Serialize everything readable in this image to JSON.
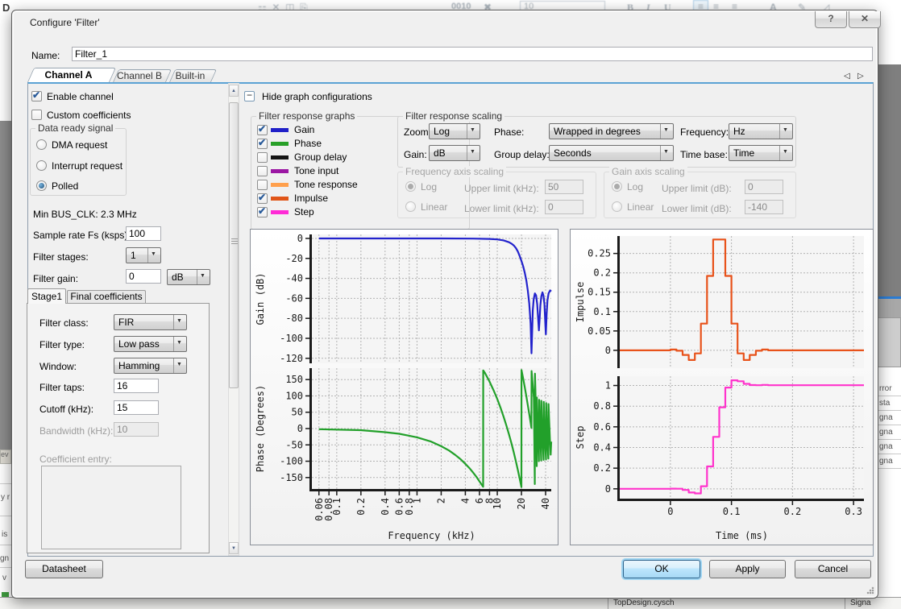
{
  "background": {
    "top_left_fragment": "D",
    "toolbar_bits": "0010",
    "toolbar_font_size": "10",
    "toolbar_b": "B",
    "toolbar_i": "I",
    "toolbar_u": "U",
    "toolbar_a": "A",
    "left_rows": [
      "ev",
      "y r",
      "is",
      "gn",
      "v"
    ],
    "right_rows": [
      "rror",
      "sta",
      "gna",
      "gna",
      "gna",
      "gna"
    ],
    "status_file": "TopDesign.cysch",
    "status_signal": "Signa"
  },
  "dialog": {
    "title": "Configure 'Filter'",
    "name_label": "Name:",
    "name_value": "Filter_1",
    "tabs": {
      "a": "Channel A",
      "b": "Channel B",
      "builtin": "Built-in"
    }
  },
  "channel": {
    "enable_label": "Enable channel",
    "enable_checked": true,
    "custom_label": "Custom coefficients",
    "custom_checked": false,
    "data_ready": {
      "title": "Data ready signal",
      "options": [
        {
          "label": "DMA request",
          "selected": false
        },
        {
          "label": "Interrupt request",
          "selected": false
        },
        {
          "label": "Polled",
          "selected": true
        }
      ]
    },
    "min_bus_clk": "Min BUS_CLK: 2.3 MHz",
    "sample_rate_label": "Sample rate Fs (ksps):",
    "sample_rate_value": "100",
    "filter_stages_label": "Filter stages:",
    "filter_stages_value": "1",
    "filter_gain_label": "Filter gain:",
    "filter_gain_value": "0",
    "filter_gain_unit": "dB"
  },
  "stage": {
    "tab_stage1": "Stage1",
    "tab_final": "Final coefficients",
    "filter_class_label": "Filter class:",
    "filter_class_value": "FIR",
    "filter_type_label": "Filter type:",
    "filter_type_value": "Low pass",
    "window_label": "Window:",
    "window_value": "Hamming",
    "filter_taps_label": "Filter taps:",
    "filter_taps_value": "16",
    "cutoff_label": "Cutoff (kHz):",
    "cutoff_value": "15",
    "bandwidth_label": "Bandwidth (kHz):",
    "bandwidth_value": "10",
    "coefficient_entry_label": "Coefficient entry:"
  },
  "graphs": {
    "hide_label": "Hide graph configurations",
    "legend_title": "Filter response graphs",
    "legend": [
      {
        "label": "Gain",
        "color": "#2020c8",
        "checked": true
      },
      {
        "label": "Phase",
        "color": "#28a028",
        "checked": true
      },
      {
        "label": "Group delay",
        "color": "#151515",
        "checked": false
      },
      {
        "label": "Tone input",
        "color": "#9b17a3",
        "checked": false
      },
      {
        "label": "Tone response",
        "color": "#ffa04d",
        "checked": false
      },
      {
        "label": "Impulse",
        "color": "#e05518",
        "checked": true
      },
      {
        "label": "Step",
        "color": "#ff2bd6",
        "checked": true
      }
    ],
    "scaling": {
      "title": "Filter response scaling",
      "zoom_label": "Zoom:",
      "zoom_value": "Log",
      "phase_label": "Phase:",
      "phase_value": "Wrapped in degrees",
      "frequency_label": "Frequency:",
      "frequency_value": "Hz",
      "gain_label": "Gain:",
      "gain_value": "dB",
      "group_delay_label": "Group delay:",
      "group_delay_value": "Seconds",
      "time_base_label": "Time base:",
      "time_base_value": "Time"
    },
    "freq_axis": {
      "title": "Frequency axis scaling",
      "log_label": "Log",
      "log_selected": true,
      "linear_label": "Linear",
      "linear_selected": false,
      "upper_label": "Upper limit (kHz):",
      "upper_value": "50",
      "lower_label": "Lower limit (kHz):",
      "lower_value": "0"
    },
    "gain_axis": {
      "title": "Gain axis scaling",
      "log_label": "Log",
      "log_selected": true,
      "linear_label": "Linear",
      "linear_selected": false,
      "upper_label": "Upper limit (dB):",
      "upper_value": "0",
      "lower_label": "Lower limit (dB):",
      "lower_value": "-140"
    }
  },
  "buttons": {
    "datasheet": "Datasheet",
    "ok": "OK",
    "apply": "Apply",
    "cancel": "Cancel"
  },
  "chart_data": [
    {
      "type": "line",
      "xlabel": "Frequency (kHz)",
      "x_scale": "log",
      "x_range": [
        0.049,
        47
      ],
      "x_ticks": [
        0.06,
        0.08,
        0.1,
        0.2,
        0.4,
        0.6,
        0.8,
        1,
        2,
        4,
        6,
        8,
        10,
        20,
        40
      ],
      "subplots": [
        {
          "ylabel": "Gain (dB)",
          "y_ticks": [
            0,
            -20,
            -40,
            -60,
            -80,
            -100,
            -120
          ],
          "y_range": [
            4,
            -125
          ],
          "series": [
            {
              "name": "Gain",
              "color": "#2222cc",
              "points": [
                [
                  0.06,
                  0
                ],
                [
                  2,
                  0
                ],
                [
                  5,
                  -0.2
                ],
                [
                  8,
                  -0.5
                ],
                [
                  10,
                  -1
                ],
                [
                  12,
                  -2
                ],
                [
                  14,
                  -3.8
                ],
                [
                  15,
                  -5.2
                ],
                [
                  16,
                  -7
                ],
                [
                  17,
                  -9.5
                ],
                [
                  18,
                  -13
                ],
                [
                  19,
                  -17.5
                ],
                [
                  20,
                  -22.5
                ],
                [
                  21,
                  -28
                ],
                [
                  22,
                  -34.5
                ],
                [
                  23,
                  -42
                ],
                [
                  24,
                  -52
                ],
                [
                  25,
                  -65
                ],
                [
                  26,
                  -85
                ],
                [
                  26.7,
                  -115
                ],
                [
                  27.1,
                  -97
                ],
                [
                  27.7,
                  -72
                ],
                [
                  28.4,
                  -61
                ],
                [
                  29.4,
                  -55
                ],
                [
                  30.4,
                  -57
                ],
                [
                  31.4,
                  -66
                ],
                [
                  32.3,
                  -81
                ],
                [
                  33,
                  -92
                ],
                [
                  33.6,
                  -82
                ],
                [
                  34.4,
                  -67
                ],
                [
                  35.4,
                  -58
                ],
                [
                  36.5,
                  -54
                ],
                [
                  37.6,
                  -57
                ],
                [
                  38.7,
                  -66
                ],
                [
                  39.8,
                  -88
                ],
                [
                  40.3,
                  -96
                ],
                [
                  41.2,
                  -76
                ],
                [
                  42.2,
                  -62
                ],
                [
                  43.5,
                  -55
                ],
                [
                  45.5,
                  -52
                ],
                [
                  47,
                  -53
                ]
              ]
            }
          ]
        },
        {
          "ylabel": "Phase (Degrees)",
          "y_ticks": [
            150,
            100,
            50,
            0,
            -50,
            -100,
            -150
          ],
          "y_range": [
            185,
            -185
          ],
          "series": [
            {
              "name": "Phase",
              "color": "#22a02a",
              "points": [
                [
                  0.06,
                  -2
                ],
                [
                  0.2,
                  -5
                ],
                [
                  0.4,
                  -11
                ],
                [
                  0.6,
                  -16
                ],
                [
                  0.8,
                  -22
                ],
                [
                  1,
                  -27
                ],
                [
                  1.5,
                  -40
                ],
                [
                  2,
                  -54
                ],
                [
                  2.5,
                  -67
                ],
                [
                  3,
                  -81
                ],
                [
                  3.5,
                  -94
                ],
                [
                  4,
                  -108
                ],
                [
                  4.5,
                  -121
                ],
                [
                  5,
                  -135
                ],
                [
                  5.5,
                  -148
                ],
                [
                  6,
                  -162
                ],
                [
                  6.66,
                  -178
                ],
                [
                  6.68,
                  178
                ],
                [
                  7,
                  171
                ],
                [
                  8,
                  144
                ],
                [
                  9,
                  117
                ],
                [
                  10,
                  90
                ],
                [
                  11,
                  63
                ],
                [
                  12,
                  36
                ],
                [
                  13,
                  9
                ],
                [
                  14,
                  -18
                ],
                [
                  15,
                  -45
                ],
                [
                  16,
                  -72
                ],
                [
                  17,
                  -99
                ],
                [
                  18,
                  -126
                ],
                [
                  19,
                  -153
                ],
                [
                  19.98,
                  -179
                ],
                [
                  20.02,
                  179
                ],
                [
                  21,
                  153
                ],
                [
                  22,
                  126
                ],
                [
                  23,
                  99
                ],
                [
                  24,
                  72
                ],
                [
                  25,
                  45
                ],
                [
                  26,
                  18
                ],
                [
                  26.6,
                  2
                ],
                [
                  26.75,
                  176
                ],
                [
                  27.5,
                  140
                ],
                [
                  28.5,
                  95
                ],
                [
                  29.3,
                  -170
                ],
                [
                  29.45,
                  168
                ],
                [
                  30.3,
                  60
                ],
                [
                  31,
                  -115
                ],
                [
                  31.15,
                  95
                ],
                [
                  32.2,
                  -30
                ],
                [
                  33,
                  -100
                ],
                [
                  33.2,
                  88
                ],
                [
                  34.3,
                  -20
                ],
                [
                  35.2,
                  -98
                ],
                [
                  35.4,
                  85
                ],
                [
                  36.6,
                  -30
                ],
                [
                  37.7,
                  -96
                ],
                [
                  37.9,
                  82
                ],
                [
                  39.3,
                  -40
                ],
                [
                  40.4,
                  -95
                ],
                [
                  40.6,
                  78
                ],
                [
                  42.3,
                  -50
                ],
                [
                  43.2,
                  -92
                ],
                [
                  43.4,
                  75
                ],
                [
                  45.3,
                  -35
                ],
                [
                  46.2,
                  -80
                ],
                [
                  47,
                  -40
                ]
              ]
            }
          ]
        }
      ]
    },
    {
      "type": "line",
      "xlabel": "Time (ms)",
      "x_scale": "linear",
      "x_range": [
        -0.083,
        0.317
      ],
      "x_ticks": [
        0,
        0.1,
        0.2,
        0.3
      ],
      "subplots": [
        {
          "ylabel": "Impulse",
          "y_ticks": [
            0.25,
            0.2,
            0.15,
            0.1,
            0.05,
            0
          ],
          "y_range": [
            0.295,
            -0.046
          ],
          "series": [
            {
              "name": "Impulse",
              "color": "#e8521a",
              "stairs": {
                "t0": 0,
                "dt": 0.01,
                "pre": 0,
                "post": 0,
                "values": [
                  0.002,
                  -0.001,
                  -0.012,
                  -0.025,
                  -0.008,
                  0.069,
                  0.192,
                  0.286,
                  0.286,
                  0.192,
                  0.069,
                  -0.008,
                  -0.025,
                  -0.012,
                  -0.001,
                  0.002
                ]
              }
            }
          ]
        },
        {
          "ylabel": "Step",
          "y_ticks": [
            1,
            0.8,
            0.6,
            0.4,
            0.2,
            0
          ],
          "y_range": [
            1.09,
            -0.095
          ],
          "series": [
            {
              "name": "Step",
              "color": "#ff33cc",
              "stairs": {
                "t0": 0,
                "dt": 0.01,
                "pre": 0,
                "post": 1.003,
                "values": [
                  0.002,
                  0.001,
                  -0.011,
                  -0.036,
                  -0.044,
                  0.025,
                  0.217,
                  0.503,
                  0.789,
                  0.98,
                  1.05,
                  1.041,
                  1.016,
                  1.004,
                  1.003,
                  1.006
                ]
              }
            }
          ]
        }
      ]
    }
  ]
}
